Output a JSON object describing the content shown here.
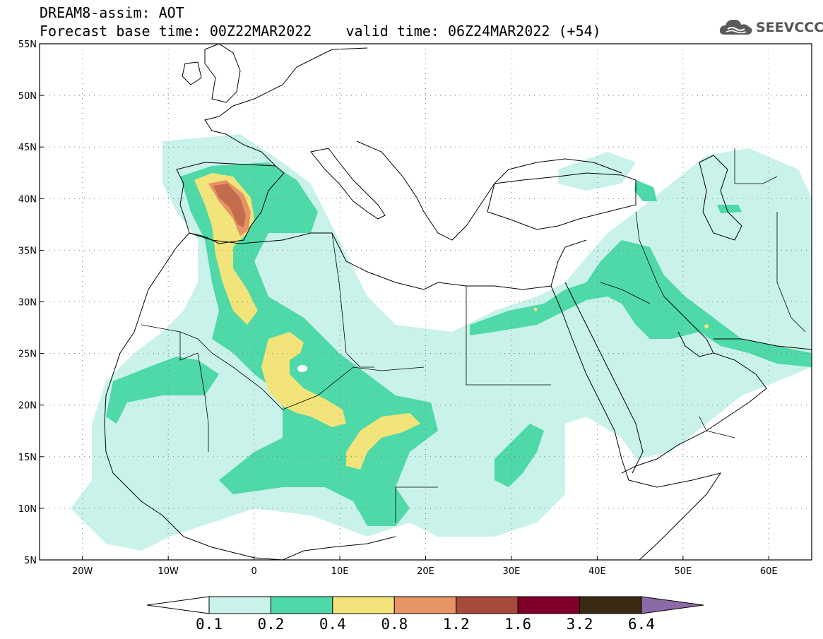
{
  "header": {
    "title_line1": "DREAM8-assim: AOT",
    "title_line2": "Forecast base time: 00Z22MAR2022    valid time: 06Z24MAR2022 (+54)"
  },
  "logo": {
    "text": "SEEVCCC",
    "icon": "cloud-icon"
  },
  "map": {
    "lon_range": [
      -25,
      65
    ],
    "lat_range": [
      5,
      55
    ],
    "lat_ticks": [
      {
        "value": 55,
        "label": "55N"
      },
      {
        "value": 50,
        "label": "50N"
      },
      {
        "value": 45,
        "label": "45N"
      },
      {
        "value": 40,
        "label": "40N"
      },
      {
        "value": 35,
        "label": "35N"
      },
      {
        "value": 30,
        "label": "30N"
      },
      {
        "value": 25,
        "label": "25N"
      },
      {
        "value": 20,
        "label": "20N"
      },
      {
        "value": 15,
        "label": "15N"
      },
      {
        "value": 10,
        "label": "10N"
      },
      {
        "value": 5,
        "label": "5N"
      }
    ],
    "lon_ticks": [
      {
        "value": -20,
        "label": "20W"
      },
      {
        "value": -10,
        "label": "10W"
      },
      {
        "value": 0,
        "label": "0"
      },
      {
        "value": 10,
        "label": "10E"
      },
      {
        "value": 20,
        "label": "20E"
      },
      {
        "value": 30,
        "label": "30E"
      },
      {
        "value": 40,
        "label": "40E"
      },
      {
        "value": 50,
        "label": "50E"
      },
      {
        "value": 60,
        "label": "60E"
      }
    ],
    "grid": "dotted",
    "field_colors": {
      "c1": "#c8f2ea",
      "c2": "#4fd8a8",
      "c3": "#f2e47a",
      "c4": "#e79464",
      "c5": "#a64a3c"
    }
  },
  "colorbar": {
    "colors": [
      "#ffffff",
      "#c8f2ea",
      "#4fd8a8",
      "#f2e47a",
      "#e79464",
      "#a64a3c",
      "#80002a",
      "#3a2a14",
      "#8c6aa8"
    ],
    "labels": [
      "0.1",
      "0.2",
      "0.4",
      "0.8",
      "1.2",
      "1.6",
      "3.2",
      "6.4"
    ]
  }
}
